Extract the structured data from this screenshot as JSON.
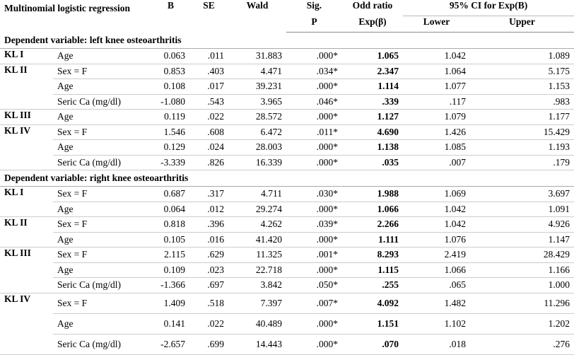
{
  "header": {
    "model": "Multinomial logistic regression",
    "b": "B",
    "se": "SE",
    "wald": "Wald",
    "sig": "Sig.",
    "p": "P",
    "or_top": "Odd ratio",
    "or_bottom": "Exp(β)",
    "ci": "95% CI for Exp(B)",
    "lower": "Lower",
    "upper": "Upper"
  },
  "sections": [
    {
      "title": "Dependent variable: left knee osteoarthritis",
      "groups": [
        {
          "group": "KL I",
          "rows": [
            [
              "Age",
              "0.063",
              ".011",
              "31.883",
              ".000*",
              "1.065",
              "1.042",
              "1.089"
            ]
          ]
        },
        {
          "group": "KL II",
          "rows": [
            [
              "Sex = F",
              "0.853",
              ".403",
              "4.471",
              ".034*",
              "2.347",
              "1.064",
              "5.175"
            ],
            [
              "Age",
              "0.108",
              ".017",
              "39.231",
              ".000*",
              "1.114",
              "1.077",
              "1.153"
            ],
            [
              "Seric Ca (mg/dl)",
              "-1.080",
              ".543",
              "3.965",
              ".046*",
              ".339",
              ".117",
              ".983"
            ]
          ]
        },
        {
          "group": "KL III",
          "rows": [
            [
              "Age",
              "0.119",
              ".022",
              "28.572",
              ".000*",
              "1.127",
              "1.079",
              "1.177"
            ]
          ]
        },
        {
          "group": "KL IV",
          "rows": [
            [
              "Sex = F",
              "1.546",
              ".608",
              "6.472",
              ".011*",
              "4.690",
              "1.426",
              "15.429"
            ],
            [
              "Age",
              "0.129",
              ".024",
              "28.003",
              ".000*",
              "1.138",
              "1.085",
              "1.193"
            ],
            [
              "Seric Ca (mg/dl)",
              "-3.339",
              ".826",
              "16.339",
              ".000*",
              ".035",
              ".007",
              ".179"
            ]
          ]
        }
      ]
    },
    {
      "title": "Dependent variable: right knee osteoarthritis",
      "groups": [
        {
          "group": "KL I",
          "rows": [
            [
              "Sex = F",
              "0.687",
              ".317",
              "4.711",
              ".030*",
              "1.988",
              "1.069",
              "3.697"
            ],
            [
              "Age",
              "0.064",
              ".012",
              "29.274",
              ".000*",
              "1.066",
              "1.042",
              "1.091"
            ]
          ]
        },
        {
          "group": "KL II",
          "rows": [
            [
              "Sex = F",
              "0.818",
              ".396",
              "4.262",
              ".039*",
              "2.266",
              "1.042",
              "4.926"
            ],
            [
              "Age",
              "0.105",
              ".016",
              "41.420",
              ".000*",
              "1.111",
              "1.076",
              "1.147"
            ]
          ]
        },
        {
          "group": "KL III",
          "rows": [
            [
              "Sex = F",
              "2.115",
              ".629",
              "11.325",
              ".001*",
              "8.293",
              "2.419",
              "28.429"
            ],
            [
              "Age",
              "0.109",
              ".023",
              "22.718",
              ".000*",
              "1.115",
              "1.066",
              "1.166"
            ],
            [
              "Seric Ca (mg/dl)",
              "-1.366",
              ".697",
              "3.842",
              ".050*",
              ".255",
              ".065",
              "1.000"
            ]
          ]
        },
        {
          "group": "KL IV",
          "rows": [
            [
              "Sex = F",
              "1.409",
              ".518",
              "7.397",
              ".007*",
              "4.092",
              "1.482",
              "11.296"
            ],
            [
              "Age",
              "0.141",
              ".022",
              "40.489",
              ".000*",
              "1.151",
              "1.102",
              "1.202"
            ],
            [
              "Seric Ca (mg/dl)",
              "-2.657",
              ".699",
              "14.443",
              ".000*",
              ".070",
              ".018",
              ".276"
            ]
          ]
        }
      ]
    }
  ]
}
